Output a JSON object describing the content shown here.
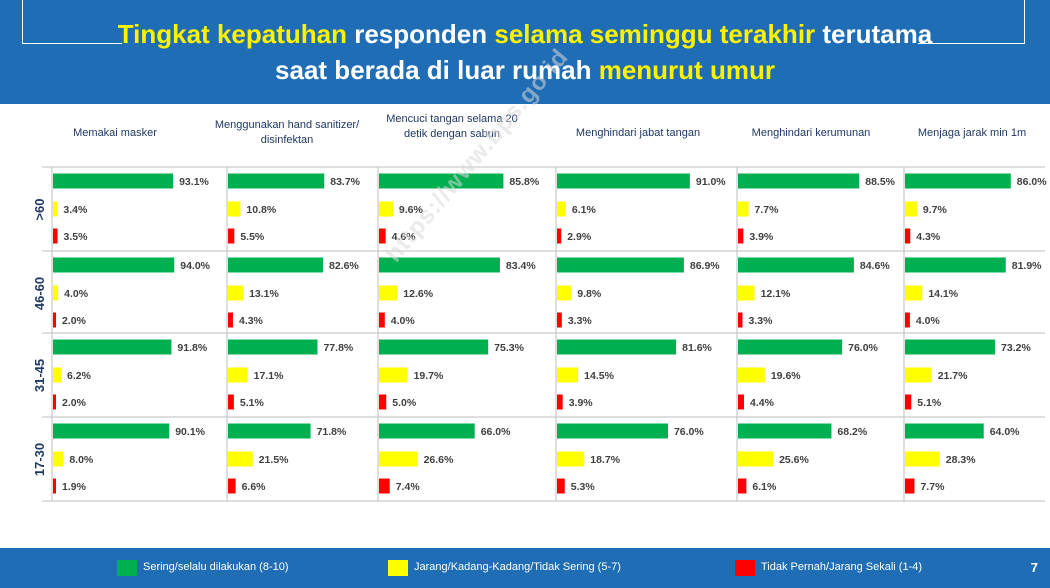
{
  "title": {
    "line1": [
      {
        "text": "Tingkat kepatuhan",
        "hl": true
      },
      {
        "text": " responden ",
        "hl": false
      },
      {
        "text": "selama seminggu terakhir",
        "hl": true
      },
      {
        "text": " terutama",
        "hl": false
      }
    ],
    "line2": [
      {
        "text": "saat berada di  luar rumah ",
        "hl": false
      },
      {
        "text": "menurut umur",
        "hl": true
      }
    ]
  },
  "watermark": "https://www.bps.go.id",
  "page_number": "7",
  "legend": [
    {
      "label": "Sering/selalu dilakukan (8-10)",
      "color": "#00b050"
    },
    {
      "label": "Jarang/Kadang-Kadang/Tidak Sering (5-7)",
      "color": "#ffff00"
    },
    {
      "label": "Tidak Pernah/Jarang Sekali (1-4)",
      "color": "#ff0000"
    }
  ],
  "chart_data": {
    "type": "bar",
    "orientation": "horizontal",
    "unit": "%",
    "age_groups": [
      ">60",
      "46-60",
      "31-45",
      "17-30"
    ],
    "series_colors": [
      "#00b050",
      "#ffff00",
      "#ff0000"
    ],
    "panels": [
      {
        "title": [
          "Memakai masker"
        ],
        "values": [
          [
            93.1,
            3.4,
            3.5
          ],
          [
            94.0,
            4.0,
            2.0
          ],
          [
            91.8,
            6.2,
            2.0
          ],
          [
            90.1,
            8.0,
            1.9
          ]
        ]
      },
      {
        "title": [
          "Menggunakan hand sanitizer/",
          "disinfektan"
        ],
        "values": [
          [
            83.7,
            10.8,
            5.5
          ],
          [
            82.6,
            13.1,
            4.3
          ],
          [
            77.8,
            17.1,
            5.1
          ],
          [
            71.8,
            21.5,
            6.6
          ]
        ]
      },
      {
        "title": [
          "Mencuci tangan selama 20",
          "detik dengan sabun"
        ],
        "values": [
          [
            85.8,
            9.6,
            4.6
          ],
          [
            83.4,
            12.6,
            4.0
          ],
          [
            75.3,
            19.7,
            5.0
          ],
          [
            66.0,
            26.6,
            7.4
          ]
        ]
      },
      {
        "title": [
          "Menghindari jabat tangan"
        ],
        "values": [
          [
            91.0,
            6.1,
            2.9
          ],
          [
            86.9,
            9.8,
            3.3
          ],
          [
            81.6,
            14.5,
            3.9
          ],
          [
            76.0,
            18.7,
            5.3
          ]
        ]
      },
      {
        "title": [
          "Menghindari kerumunan"
        ],
        "values": [
          [
            88.5,
            7.7,
            3.9
          ],
          [
            84.6,
            12.1,
            3.3
          ],
          [
            76.0,
            19.6,
            4.4
          ],
          [
            68.2,
            25.6,
            6.1
          ]
        ]
      },
      {
        "title": [
          "Menjaga jarak min 1m"
        ],
        "values": [
          [
            86.0,
            9.7,
            4.3
          ],
          [
            81.9,
            14.1,
            4.0
          ],
          [
            73.2,
            21.7,
            5.1
          ],
          [
            64.0,
            28.3,
            7.7
          ]
        ]
      }
    ]
  }
}
